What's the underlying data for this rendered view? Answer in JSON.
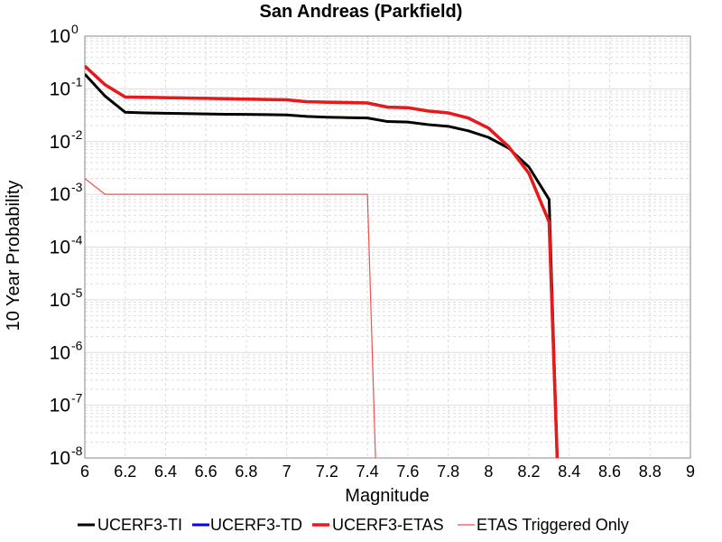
{
  "chart_data": {
    "type": "line",
    "title": "San Andreas (Parkfield)",
    "xlabel": "Magnitude",
    "ylabel": "10 Year Probability",
    "xlim": [
      6,
      9
    ],
    "ylim": [
      1e-08,
      1
    ],
    "yscale": "log",
    "grid": true,
    "legend_position": "bottom",
    "xticks": [
      "6",
      "6.2",
      "6.4",
      "6.6",
      "6.8",
      "7",
      "7.2",
      "7.4",
      "7.6",
      "7.8",
      "8",
      "8.2",
      "8.4",
      "8.6",
      "8.8",
      "9"
    ],
    "yticks": [
      {
        "base": "10",
        "exp": "0"
      },
      {
        "base": "10",
        "exp": "-1"
      },
      {
        "base": "10",
        "exp": "-2"
      },
      {
        "base": "10",
        "exp": "-3"
      },
      {
        "base": "10",
        "exp": "-4"
      },
      {
        "base": "10",
        "exp": "-5"
      },
      {
        "base": "10",
        "exp": "-6"
      },
      {
        "base": "10",
        "exp": "-7"
      },
      {
        "base": "10",
        "exp": "-8"
      }
    ],
    "series": [
      {
        "name": "UCERF3-TI",
        "color": "#000000",
        "width": 3,
        "x": [
          6.0,
          6.1,
          6.2,
          6.3,
          6.4,
          6.5,
          6.6,
          6.7,
          6.8,
          6.9,
          7.0,
          7.1,
          7.2,
          7.3,
          7.4,
          7.5,
          7.6,
          7.7,
          7.8,
          7.9,
          8.0,
          8.1,
          8.2,
          8.3,
          8.34
        ],
        "y": [
          0.19,
          0.073,
          0.036,
          0.035,
          0.0345,
          0.034,
          0.0335,
          0.033,
          0.0328,
          0.0325,
          0.032,
          0.03,
          0.029,
          0.0285,
          0.028,
          0.024,
          0.0235,
          0.021,
          0.0195,
          0.016,
          0.012,
          0.0075,
          0.0033,
          0.0008,
          1e-08
        ]
      },
      {
        "name": "UCERF3-TD",
        "color": "#0000ff",
        "width": 3,
        "x": [
          6.0,
          6.1,
          6.2,
          6.3,
          6.4,
          6.5,
          6.6,
          6.7,
          6.8,
          6.9,
          7.0,
          7.1,
          7.2,
          7.3,
          7.4,
          7.5,
          7.6,
          7.7,
          7.8,
          7.9,
          8.0,
          8.1,
          8.2,
          8.3,
          8.34
        ],
        "y": [
          0.27,
          0.12,
          0.07,
          0.069,
          0.068,
          0.067,
          0.066,
          0.065,
          0.064,
          0.063,
          0.062,
          0.057,
          0.056,
          0.055,
          0.054,
          0.045,
          0.044,
          0.038,
          0.035,
          0.028,
          0.018,
          0.008,
          0.0025,
          0.0003,
          1e-08
        ]
      },
      {
        "name": "UCERF3-ETAS",
        "color": "#e8191b",
        "width": 3.5,
        "x": [
          6.0,
          6.1,
          6.2,
          6.3,
          6.4,
          6.5,
          6.6,
          6.7,
          6.8,
          6.9,
          7.0,
          7.1,
          7.2,
          7.3,
          7.4,
          7.5,
          7.6,
          7.7,
          7.8,
          7.9,
          8.0,
          8.1,
          8.2,
          8.3,
          8.34
        ],
        "y": [
          0.27,
          0.12,
          0.07,
          0.069,
          0.068,
          0.067,
          0.066,
          0.065,
          0.064,
          0.063,
          0.062,
          0.057,
          0.056,
          0.055,
          0.054,
          0.045,
          0.044,
          0.038,
          0.035,
          0.028,
          0.018,
          0.008,
          0.0025,
          0.0003,
          1e-08
        ]
      },
      {
        "name": "ETAS Triggered Only",
        "color": "#f05050",
        "width": 1.2,
        "x": [
          6.0,
          6.1,
          6.2,
          6.3,
          6.4,
          6.5,
          6.6,
          6.7,
          6.8,
          6.9,
          7.0,
          7.1,
          7.2,
          7.3,
          7.4,
          7.44
        ],
        "y": [
          0.002,
          0.001,
          0.001,
          0.001,
          0.001,
          0.001,
          0.001,
          0.001,
          0.001,
          0.001,
          0.001,
          0.001,
          0.001,
          0.001,
          0.001,
          1e-08
        ]
      }
    ]
  }
}
